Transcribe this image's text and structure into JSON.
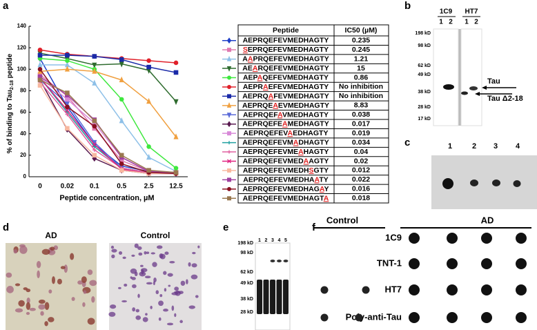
{
  "chart_data": {
    "type": "line",
    "label": "a",
    "ylabel": [
      "% of binding to Tau",
      "2-18",
      " peptide"
    ],
    "xlabel": "Peptide concentration, µM",
    "categories": [
      "0",
      "0.02",
      "0.1",
      "0.5",
      "2.5",
      "12.5"
    ],
    "ylim": [
      0,
      140
    ],
    "yticks": [
      0,
      20,
      40,
      60,
      80,
      100,
      120,
      140
    ],
    "series": [
      {
        "color": "#1f3fc8",
        "marker": "diamond",
        "values": [
          110,
          65,
          30,
          10,
          5,
          4
        ]
      },
      {
        "color": "#e07ab0",
        "marker": "square",
        "values": [
          95,
          75,
          45,
          15,
          5,
          4
        ]
      },
      {
        "color": "#8ec0e8",
        "marker": "triangle",
        "values": [
          104,
          104,
          87,
          52,
          18,
          5
        ]
      },
      {
        "color": "#2e6b2e",
        "marker": "triangle-down",
        "values": [
          115,
          110,
          104,
          105,
          99,
          70
        ]
      },
      {
        "color": "#3ee83e",
        "marker": "circle",
        "values": [
          110,
          108,
          100,
          72,
          28,
          8
        ]
      },
      {
        "color": "#e0202a",
        "marker": "circle",
        "values": [
          118,
          114,
          112,
          110,
          108,
          106
        ]
      },
      {
        "color": "#1a2aa8",
        "marker": "square",
        "values": [
          113,
          113,
          112,
          109,
          102,
          97
        ]
      },
      {
        "color": "#f0a040",
        "marker": "triangle",
        "values": [
          98,
          100,
          98,
          90,
          70,
          37
        ]
      },
      {
        "color": "#5a6ad8",
        "marker": "triangle-down",
        "values": [
          90,
          68,
          32,
          8,
          4,
          3
        ]
      },
      {
        "color": "#5a1a50",
        "marker": "diamond",
        "values": [
          90,
          44,
          17,
          6,
          3,
          3
        ]
      },
      {
        "color": "#d88ad8",
        "marker": "square",
        "values": [
          92,
          72,
          50,
          18,
          5,
          4
        ]
      },
      {
        "color": "#20a0a0",
        "marker": "plus",
        "values": [
          92,
          60,
          28,
          8,
          4,
          3
        ]
      },
      {
        "color": "#e060a0",
        "marker": "plus",
        "values": [
          88,
          58,
          25,
          8,
          4,
          3
        ]
      },
      {
        "color": "#e02080",
        "marker": "x",
        "values": [
          92,
          62,
          30,
          7,
          3,
          3
        ]
      },
      {
        "color": "#f8b8a0",
        "marker": "square",
        "values": [
          85,
          45,
          20,
          6,
          3,
          3
        ]
      },
      {
        "color": "#a040a0",
        "marker": "square",
        "values": [
          93,
          76,
          53,
          18,
          5,
          4
        ]
      },
      {
        "color": "#8a1020",
        "marker": "circle",
        "values": [
          100,
          65,
          47,
          12,
          4,
          3
        ]
      },
      {
        "color": "#9a7850",
        "marker": "square",
        "values": [
          90,
          78,
          52,
          20,
          6,
          4
        ]
      }
    ]
  },
  "table": {
    "header": [
      "Peptide",
      "IC50 (µM)"
    ],
    "rows": [
      [
        {
          "pre": "AEPRQEFEVMEDHAGTY"
        },
        "0.235"
      ],
      [
        {
          "mut": "S",
          "post": "EPRQEFEVMEDHAGTY"
        },
        "0.245"
      ],
      [
        {
          "pre": "A",
          "mut": "A",
          "post": "PRQEFEVMEDHAGTY"
        },
        "1.21"
      ],
      [
        {
          "pre": "AE",
          "mut": "A",
          "post": "RQEFEVMEDHAGTY"
        },
        "15"
      ],
      [
        {
          "pre": "AEP",
          "mut": "A",
          "post": "QEFEVMEDHAGTY"
        },
        "0.86"
      ],
      [
        {
          "pre": "AEPR",
          "mut": "A",
          "post": "EFEVMEDHAGTY"
        },
        "No inhibition"
      ],
      [
        {
          "pre": "AEPRQ",
          "mut": "A",
          "post": "FEVMEDHAGTY"
        },
        "No inhibition"
      ],
      [
        {
          "pre": "AEPRQE",
          "mut": "A",
          "post": "EVMEDHAGTY"
        },
        "8.83"
      ],
      [
        {
          "pre": "AEPRQEF",
          "mut": "A",
          "post": "VMEDHAGTY"
        },
        "0.038"
      ],
      [
        {
          "pre": "AEPRQEFE",
          "mut": "A",
          "post": "MEDHAGTY"
        },
        "0.017"
      ],
      [
        {
          "pre": "AEPRQEFEV",
          "mut": "A",
          "post": "EDHAGTY"
        },
        "0.019"
      ],
      [
        {
          "pre": "AEPRQEFEVM",
          "mut": "A",
          "post": "DHAGTY"
        },
        "0.034"
      ],
      [
        {
          "pre": "AEPRQEFEVME",
          "mut": "A",
          "post": "HAGTY"
        },
        "0.04"
      ],
      [
        {
          "pre": "AEPRQEFEVMED",
          "mut": "A",
          "post": "AGTY"
        },
        "0.02"
      ],
      [
        {
          "pre": "AEPRQEFEVMEDH",
          "mut": "S",
          "post": "GTY"
        },
        "0.012"
      ],
      [
        {
          "pre": "AEPRQEFEVMEDHA",
          "mut": "A",
          "post": "TY"
        },
        "0.022"
      ],
      [
        {
          "pre": "AEPRQEFEVMEDHAG",
          "mut": "A",
          "post": "Y"
        },
        "0.016"
      ],
      [
        {
          "pre": "AEPRQEFEVMEDHAGT",
          "mut": "A"
        },
        "0.018"
      ]
    ]
  },
  "panel_b": {
    "label": "b",
    "antibodies": [
      "1C9",
      "HT7"
    ],
    "lanes": [
      "1",
      "2",
      "1",
      "2"
    ],
    "markers": [
      "198 kD",
      "98 kD",
      "62 kD",
      "49 kD",
      "38 kD",
      "28 kD",
      "17 kD"
    ],
    "bands": [
      "Tau",
      "Tau Δ2-18"
    ]
  },
  "panel_c": {
    "label": "c",
    "lanes": [
      "1",
      "2",
      "3",
      "4"
    ]
  },
  "panel_d": {
    "label": "d",
    "titles": [
      "AD",
      "Control"
    ]
  },
  "panel_e": {
    "label": "e",
    "lanes": [
      "1",
      "2",
      "3",
      "4",
      "5"
    ],
    "markers": [
      "198 kD",
      "98 kD",
      "62 kD",
      "49 kD",
      "38 kD",
      "28 kD"
    ]
  },
  "panel_f": {
    "label": "f",
    "groups": [
      "Control",
      "AD"
    ],
    "rows": [
      "1C9",
      "TNT-1",
      "HT7",
      "Poly-anti-Tau"
    ]
  }
}
